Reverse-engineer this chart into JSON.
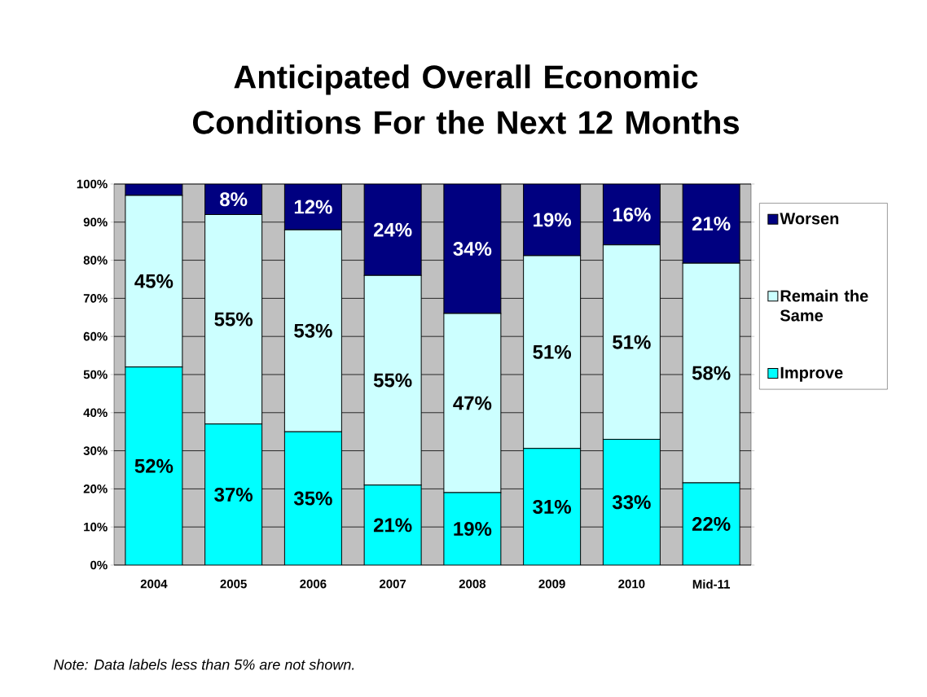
{
  "chart_data": {
    "type": "bar",
    "stacked": true,
    "title": "Anticipated Overall Economic Conditions For the Next 12 Months",
    "categories": [
      "2004",
      "2005",
      "2006",
      "2007",
      "2008",
      "2009",
      "2010",
      "Mid-11"
    ],
    "series": [
      {
        "name": "Improve",
        "color": "#00ffff",
        "values": [
          52,
          37,
          35,
          21,
          19,
          30.6,
          33,
          21.6
        ],
        "value_labels": [
          "52%",
          "37%",
          "35%",
          "21%",
          "19%",
          "31%",
          "33%",
          "22%"
        ]
      },
      {
        "name": "Remain the Same",
        "color": "#ccffff",
        "values": [
          45,
          55,
          53,
          55,
          47,
          50.6,
          51,
          57.6
        ],
        "value_labels": [
          "45%",
          "55%",
          "53%",
          "55%",
          "47%",
          "51%",
          "51%",
          "58%"
        ]
      },
      {
        "name": "Worsen",
        "color": "#000080",
        "values": [
          3,
          8,
          12,
          24,
          34,
          18.8,
          16,
          20.8
        ],
        "value_labels": [
          null,
          "8%",
          "12%",
          "24%",
          "34%",
          "19%",
          "16%",
          "21%"
        ]
      }
    ],
    "ylim": [
      0,
      100
    ],
    "yticks": [
      {
        "value": 0,
        "label": "0%"
      },
      {
        "value": 10,
        "label": "10%"
      },
      {
        "value": 20,
        "label": "20%"
      },
      {
        "value": 30,
        "label": "30%"
      },
      {
        "value": 40,
        "label": "40%"
      },
      {
        "value": 50,
        "label": "50%"
      },
      {
        "value": 60,
        "label": "60%"
      },
      {
        "value": 70,
        "label": "70%"
      },
      {
        "value": 80,
        "label": "80%"
      },
      {
        "value": 90,
        "label": "90%"
      },
      {
        "value": 100,
        "label": "100%"
      }
    ],
    "grid": "y",
    "legend": "right",
    "annotations": [
      "Note: Data labels less than 5% are not shown."
    ]
  }
}
